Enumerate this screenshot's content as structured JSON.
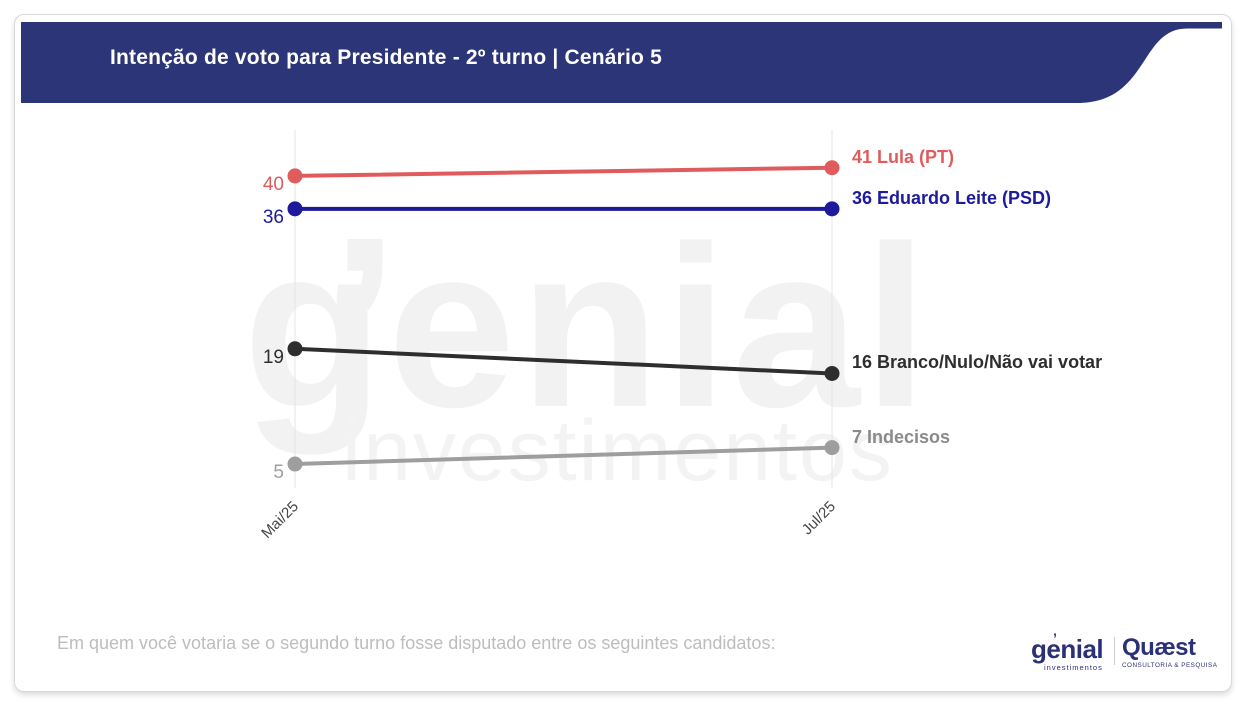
{
  "header": {
    "title": "Intenção de voto para Presidente - 2º turno | Cenário 5",
    "background_color": "#2b3577",
    "text_color": "#ffffff"
  },
  "chart_data": {
    "type": "line",
    "categories": [
      "Mai/25",
      "Jul/25"
    ],
    "series": [
      {
        "name": "Lula (PT)",
        "values": [
          40,
          41
        ],
        "color": "#e05c5c"
      },
      {
        "name": "Eduardo Leite (PSD)",
        "values": [
          36,
          36
        ],
        "color": "#1d1a9c"
      },
      {
        "name": "Branco/Nulo/Não vai votar",
        "values": [
          19,
          16
        ],
        "color": "#2e2e2e"
      },
      {
        "name": "Indecisos",
        "values": [
          5,
          7
        ],
        "color": "#9e9e9e",
        "label_color": "#8a8a8a"
      }
    ],
    "title": "Intenção de voto para Presidente - 2º turno | Cenário 5",
    "xlabel": "",
    "ylabel": "",
    "ylim": [
      0,
      45
    ],
    "grid": "vertical-category-lines-only",
    "gridline_color": "#e4e4e4",
    "x_tick_rotation": -45,
    "value_labels": "start-and-end-of-line",
    "legend_position": "labels-at-line-end"
  },
  "watermark": {
    "line1": "genial",
    "apostrophe": "’",
    "line2": "investimentos"
  },
  "footnote": "Em quem você votaria se o segundo turno fosse disputado entre os seguintes candidatos:",
  "footer_logos": {
    "brand_color": "#2b3177",
    "genial": {
      "name": "genial",
      "apostrophe": "’",
      "subtitle": "investimentos"
    },
    "quaest": {
      "name": "Quæst",
      "subtitle": "CONSULTORIA & PESQUISA"
    }
  }
}
